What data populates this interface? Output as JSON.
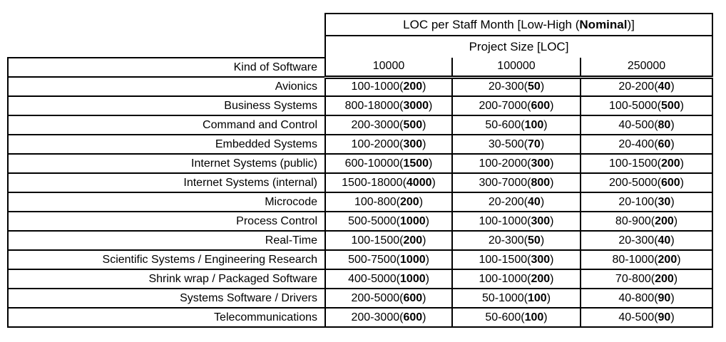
{
  "colors": {
    "background": "#ffffff",
    "border": "#000000",
    "text": "#000000"
  },
  "table": {
    "title": {
      "prefix": "LOC per Staff Month [Low-High (",
      "bold": "Nominal",
      "suffix": ")]"
    },
    "subtitle": "Project Size [LOC]",
    "row_header": "Kind of Software",
    "columns": [
      "10000",
      "100000",
      "250000"
    ],
    "rows": [
      {
        "kind": "Avionics",
        "cells": [
          {
            "pre": "100-1000(",
            "nominal": "200",
            "post": ")"
          },
          {
            "pre": "20-300(",
            "nominal": "50",
            "post": ")"
          },
          {
            "pre": "20-200(",
            "nominal": "40",
            "post": ")"
          }
        ]
      },
      {
        "kind": "Business Systems",
        "cells": [
          {
            "pre": "800-18000(",
            "nominal": "3000",
            "post": ")"
          },
          {
            "pre": "200-7000(",
            "nominal": "600",
            "post": ")"
          },
          {
            "pre": "100-5000(",
            "nominal": "500",
            "post": ")"
          }
        ]
      },
      {
        "kind": "Command and Control",
        "cells": [
          {
            "pre": "200-3000(",
            "nominal": "500",
            "post": ")"
          },
          {
            "pre": "50-600(",
            "nominal": "100",
            "post": ")"
          },
          {
            "pre": "40-500(",
            "nominal": "80",
            "post": ")"
          }
        ]
      },
      {
        "kind": "Embedded Systems",
        "cells": [
          {
            "pre": "100-2000(",
            "nominal": "300",
            "post": ")"
          },
          {
            "pre": "30-500(",
            "nominal": "70",
            "post": ")"
          },
          {
            "pre": "20-400(",
            "nominal": "60",
            "post": ")"
          }
        ]
      },
      {
        "kind": "Internet Systems (public)",
        "cells": [
          {
            "pre": "600-10000(",
            "nominal": "1500",
            "post": ")"
          },
          {
            "pre": "100-2000(",
            "nominal": "300",
            "post": ")"
          },
          {
            "pre": "100-1500(",
            "nominal": "200",
            "post": ")"
          }
        ]
      },
      {
        "kind": "Internet Systems (internal)",
        "cells": [
          {
            "pre": "1500-18000(",
            "nominal": "4000",
            "post": ")"
          },
          {
            "pre": "300-7000(",
            "nominal": "800",
            "post": ")"
          },
          {
            "pre": "200-5000(",
            "nominal": "600",
            "post": ")"
          }
        ]
      },
      {
        "kind": "Microcode",
        "cells": [
          {
            "pre": "100-800(",
            "nominal": "200",
            "post": ")"
          },
          {
            "pre": "20-200(",
            "nominal": "40",
            "post": ")"
          },
          {
            "pre": "20-100(",
            "nominal": "30",
            "post": ")"
          }
        ]
      },
      {
        "kind": "Process Control",
        "cells": [
          {
            "pre": "500-5000(",
            "nominal": "1000",
            "post": ")"
          },
          {
            "pre": "100-1000(",
            "nominal": "300",
            "post": ")"
          },
          {
            "pre": "80-900(",
            "nominal": "200",
            "post": ")"
          }
        ]
      },
      {
        "kind": "Real-Time",
        "cells": [
          {
            "pre": "100-1500(",
            "nominal": "200",
            "post": ")"
          },
          {
            "pre": "20-300(",
            "nominal": "50",
            "post": ")"
          },
          {
            "pre": "20-300(",
            "nominal": "40",
            "post": ")"
          }
        ]
      },
      {
        "kind": "Scientific Systems / Engineering Research",
        "cells": [
          {
            "pre": "500-7500(",
            "nominal": "1000",
            "post": ")"
          },
          {
            "pre": "100-1500(",
            "nominal": "300",
            "post": ")"
          },
          {
            "pre": "80-1000(",
            "nominal": "200",
            "post": ")"
          }
        ]
      },
      {
        "kind": "Shrink wrap / Packaged Software",
        "cells": [
          {
            "pre": "400-5000(",
            "nominal": "1000",
            "post": ")"
          },
          {
            "pre": "100-1000(",
            "nominal": "200",
            "post": ")"
          },
          {
            "pre": "70-800(",
            "nominal": "200",
            "post": ")"
          }
        ]
      },
      {
        "kind": "Systems Software / Drivers",
        "cells": [
          {
            "pre": "200-5000(",
            "nominal": "600",
            "post": ")"
          },
          {
            "pre": "50-1000(",
            "nominal": "100",
            "post": ")"
          },
          {
            "pre": "40-800(",
            "nominal": "90",
            "post": ")"
          }
        ]
      },
      {
        "kind": "Telecommunications",
        "cells": [
          {
            "pre": "200-3000(",
            "nominal": "600",
            "post": ")"
          },
          {
            "pre": "50-600(",
            "nominal": "100",
            "post": ")"
          },
          {
            "pre": "40-500(",
            "nominal": "90",
            "post": ")"
          }
        ]
      }
    ]
  }
}
